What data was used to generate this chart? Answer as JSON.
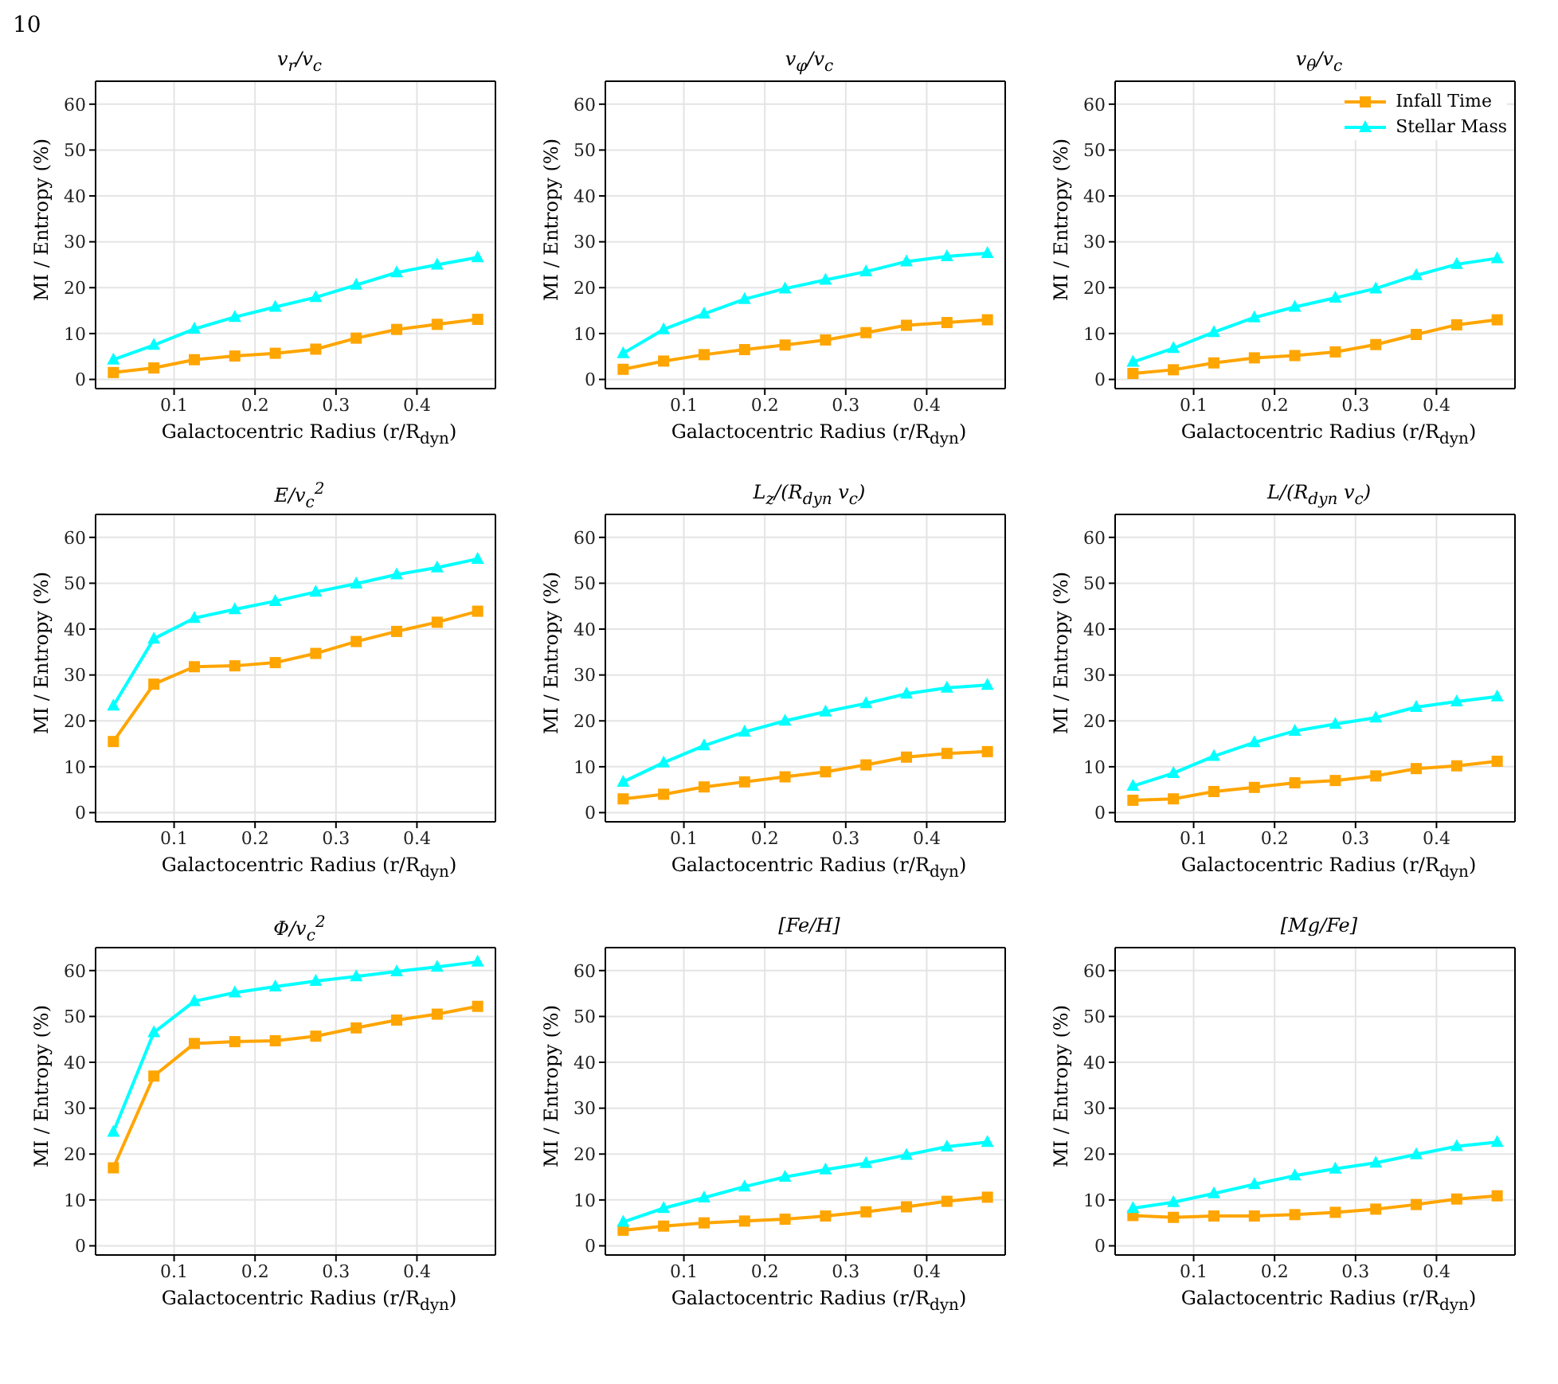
{
  "chart_data": [
    {
      "type": "line",
      "title": "v$_{r}$/v$_{c}$",
      "xlabel": "Galactocentric Radius (r/R$_{dyn}$)",
      "ylabel": "MI / Entropy (%)",
      "annotations": [
        "10"
      ],
      "x": [
        0.025,
        0.075,
        0.125,
        0.175,
        0.225,
        0.275,
        0.325,
        0.375,
        0.425,
        0.475
      ],
      "xlim": [
        0.003,
        0.497
      ],
      "xticks": [
        0.1,
        0.2,
        0.3,
        0.4
      ],
      "ylim": [
        -2,
        65
      ],
      "yticks": [
        0,
        10,
        20,
        30,
        40,
        50,
        60
      ],
      "grid": true,
      "legend": false,
      "series": [
        {
          "color": "#ffa500",
          "marker": "square",
          "values": [
            1.5,
            2.5,
            4.3,
            5.1,
            5.7,
            6.6,
            9.0,
            10.9,
            12.0,
            13.1
          ]
        },
        {
          "color": "#00ffff",
          "marker": "triangle",
          "values": [
            4.3,
            7.5,
            11.0,
            13.6,
            15.8,
            17.9,
            20.6,
            23.3,
            25.0,
            26.6
          ]
        }
      ]
    },
    {
      "type": "line",
      "title": "v$_{φ}$/v$_{c}$",
      "xlabel": "Galactocentric Radius (r/R$_{dyn}$)",
      "ylabel": "MI / Entropy (%)",
      "x": [
        0.025,
        0.075,
        0.125,
        0.175,
        0.225,
        0.275,
        0.325,
        0.375,
        0.425,
        0.475
      ],
      "xlim": [
        0.003,
        0.497
      ],
      "xticks": [
        0.1,
        0.2,
        0.3,
        0.4
      ],
      "ylim": [
        -2,
        65
      ],
      "yticks": [
        0,
        10,
        20,
        30,
        40,
        50,
        60
      ],
      "grid": true,
      "legend": false,
      "series": [
        {
          "color": "#ffa500",
          "marker": "square",
          "values": [
            2.2,
            4.0,
            5.4,
            6.5,
            7.5,
            8.6,
            10.2,
            11.8,
            12.4,
            13.0
          ]
        },
        {
          "color": "#00ffff",
          "marker": "triangle",
          "values": [
            5.7,
            10.9,
            14.3,
            17.5,
            19.8,
            21.7,
            23.5,
            25.7,
            26.8,
            27.5
          ]
        }
      ]
    },
    {
      "type": "line",
      "title": "v$_{θ}$/v$_{c}$",
      "xlabel": "Galactocentric Radius (r/R$_{dyn}$)",
      "ylabel": "MI / Entropy (%)",
      "x": [
        0.025,
        0.075,
        0.125,
        0.175,
        0.225,
        0.275,
        0.325,
        0.375,
        0.425,
        0.475
      ],
      "xlim": [
        0.003,
        0.497
      ],
      "xticks": [
        0.1,
        0.2,
        0.3,
        0.4
      ],
      "ylim": [
        -2,
        65
      ],
      "yticks": [
        0,
        10,
        20,
        30,
        40,
        50,
        60
      ],
      "grid": true,
      "legend": "top right",
      "series": [
        {
          "name": "Infall Time",
          "color": "#ffa500",
          "marker": "square",
          "values": [
            1.3,
            2.1,
            3.6,
            4.7,
            5.2,
            6.0,
            7.6,
            9.8,
            11.9,
            13.0
          ]
        },
        {
          "name": "Stellar Mass",
          "color": "#00ffff",
          "marker": "triangle",
          "values": [
            3.8,
            6.8,
            10.3,
            13.5,
            15.8,
            17.8,
            19.8,
            22.7,
            25.1,
            26.4
          ]
        }
      ]
    },
    {
      "type": "line",
      "title": "E/v$_{c}$$^{2}$",
      "xlabel": "Galactocentric Radius (r/R$_{dyn}$)",
      "ylabel": "MI / Entropy (%)",
      "x": [
        0.025,
        0.075,
        0.125,
        0.175,
        0.225,
        0.275,
        0.325,
        0.375,
        0.425,
        0.475
      ],
      "xlim": [
        0.003,
        0.497
      ],
      "xticks": [
        0.1,
        0.2,
        0.3,
        0.4
      ],
      "ylim": [
        -2,
        65
      ],
      "yticks": [
        0,
        10,
        20,
        30,
        40,
        50,
        60
      ],
      "grid": true,
      "legend": false,
      "series": [
        {
          "color": "#ffa500",
          "marker": "square",
          "values": [
            15.5,
            28.0,
            31.8,
            32.0,
            32.7,
            34.7,
            37.3,
            39.5,
            41.5,
            43.9
          ]
        },
        {
          "color": "#00ffff",
          "marker": "triangle",
          "values": [
            23.3,
            37.9,
            42.4,
            44.3,
            46.1,
            48.1,
            49.9,
            51.9,
            53.4,
            55.3
          ]
        }
      ]
    },
    {
      "type": "line",
      "title": "L$_{z}$/(R$_{dyn}$ v$_{c}$)",
      "xlabel": "Galactocentric Radius (r/R$_{dyn}$)",
      "ylabel": "MI / Entropy (%)",
      "x": [
        0.025,
        0.075,
        0.125,
        0.175,
        0.225,
        0.275,
        0.325,
        0.375,
        0.425,
        0.475
      ],
      "xlim": [
        0.003,
        0.497
      ],
      "xticks": [
        0.1,
        0.2,
        0.3,
        0.4
      ],
      "ylim": [
        -2,
        65
      ],
      "yticks": [
        0,
        10,
        20,
        30,
        40,
        50,
        60
      ],
      "grid": true,
      "legend": false,
      "series": [
        {
          "color": "#ffa500",
          "marker": "square",
          "values": [
            3.0,
            4.0,
            5.6,
            6.7,
            7.8,
            8.9,
            10.4,
            12.1,
            12.9,
            13.3
          ]
        },
        {
          "color": "#00ffff",
          "marker": "triangle",
          "values": [
            6.7,
            10.9,
            14.6,
            17.6,
            20.0,
            22.0,
            23.8,
            25.9,
            27.2,
            27.8
          ]
        }
      ]
    },
    {
      "type": "line",
      "title": "L/(R$_{dyn}$ v$_{c}$)",
      "xlabel": "Galactocentric Radius (r/R$_{dyn}$)",
      "ylabel": "MI / Entropy (%)",
      "x": [
        0.025,
        0.075,
        0.125,
        0.175,
        0.225,
        0.275,
        0.325,
        0.375,
        0.425,
        0.475
      ],
      "xlim": [
        0.003,
        0.497
      ],
      "xticks": [
        0.1,
        0.2,
        0.3,
        0.4
      ],
      "ylim": [
        -2,
        65
      ],
      "yticks": [
        0,
        10,
        20,
        30,
        40,
        50,
        60
      ],
      "grid": true,
      "legend": false,
      "series": [
        {
          "color": "#ffa500",
          "marker": "square",
          "values": [
            2.7,
            3.0,
            4.6,
            5.5,
            6.5,
            7.0,
            8.0,
            9.6,
            10.2,
            11.2
          ]
        },
        {
          "color": "#00ffff",
          "marker": "triangle",
          "values": [
            5.8,
            8.6,
            12.3,
            15.3,
            17.8,
            19.3,
            20.7,
            23.0,
            24.2,
            25.3
          ]
        }
      ]
    },
    {
      "type": "line",
      "title": "Φ/v$_{c}$$^{2}$",
      "xlabel": "Galactocentric Radius (r/R$_{dyn}$)",
      "ylabel": "MI / Entropy (%)",
      "x": [
        0.025,
        0.075,
        0.125,
        0.175,
        0.225,
        0.275,
        0.325,
        0.375,
        0.425,
        0.475
      ],
      "xlim": [
        0.003,
        0.497
      ],
      "xticks": [
        0.1,
        0.2,
        0.3,
        0.4
      ],
      "ylim": [
        -2,
        65
      ],
      "yticks": [
        0,
        10,
        20,
        30,
        40,
        50,
        60
      ],
      "grid": true,
      "legend": false,
      "series": [
        {
          "color": "#ffa500",
          "marker": "square",
          "values": [
            17.0,
            37.0,
            44.1,
            44.5,
            44.7,
            45.7,
            47.5,
            49.2,
            50.5,
            52.2
          ]
        },
        {
          "color": "#00ffff",
          "marker": "triangle",
          "values": [
            24.8,
            46.5,
            53.3,
            55.2,
            56.5,
            57.7,
            58.7,
            59.8,
            60.8,
            61.9
          ]
        }
      ]
    },
    {
      "type": "line",
      "title": "[Fe/H]",
      "xlabel": "Galactocentric Radius (r/R$_{dyn}$)",
      "ylabel": "MI / Entropy (%)",
      "x": [
        0.025,
        0.075,
        0.125,
        0.175,
        0.225,
        0.275,
        0.325,
        0.375,
        0.425,
        0.475
      ],
      "xlim": [
        0.003,
        0.497
      ],
      "xticks": [
        0.1,
        0.2,
        0.3,
        0.4
      ],
      "ylim": [
        -2,
        65
      ],
      "yticks": [
        0,
        10,
        20,
        30,
        40,
        50,
        60
      ],
      "grid": true,
      "legend": false,
      "series": [
        {
          "color": "#ffa500",
          "marker": "square",
          "values": [
            3.4,
            4.3,
            5.0,
            5.4,
            5.8,
            6.5,
            7.4,
            8.5,
            9.7,
            10.6
          ]
        },
        {
          "color": "#00ffff",
          "marker": "triangle",
          "values": [
            5.2,
            8.2,
            10.5,
            12.9,
            15.0,
            16.6,
            18.0,
            19.8,
            21.6,
            22.6
          ]
        }
      ]
    },
    {
      "type": "line",
      "title": "[Mg/Fe]",
      "xlabel": "Galactocentric Radius (r/R$_{dyn}$)",
      "ylabel": "MI / Entropy (%)",
      "x": [
        0.025,
        0.075,
        0.125,
        0.175,
        0.225,
        0.275,
        0.325,
        0.375,
        0.425,
        0.475
      ],
      "xlim": [
        0.003,
        0.497
      ],
      "xticks": [
        0.1,
        0.2,
        0.3,
        0.4
      ],
      "ylim": [
        -2,
        65
      ],
      "yticks": [
        0,
        10,
        20,
        30,
        40,
        50,
        60
      ],
      "grid": true,
      "legend": false,
      "series": [
        {
          "color": "#ffa500",
          "marker": "square",
          "values": [
            6.6,
            6.2,
            6.5,
            6.5,
            6.8,
            7.3,
            8.0,
            9.0,
            10.2,
            10.9
          ]
        },
        {
          "color": "#00ffff",
          "marker": "triangle",
          "values": [
            8.2,
            9.5,
            11.4,
            13.4,
            15.3,
            16.8,
            18.1,
            19.9,
            21.7,
            22.6
          ]
        }
      ]
    }
  ]
}
